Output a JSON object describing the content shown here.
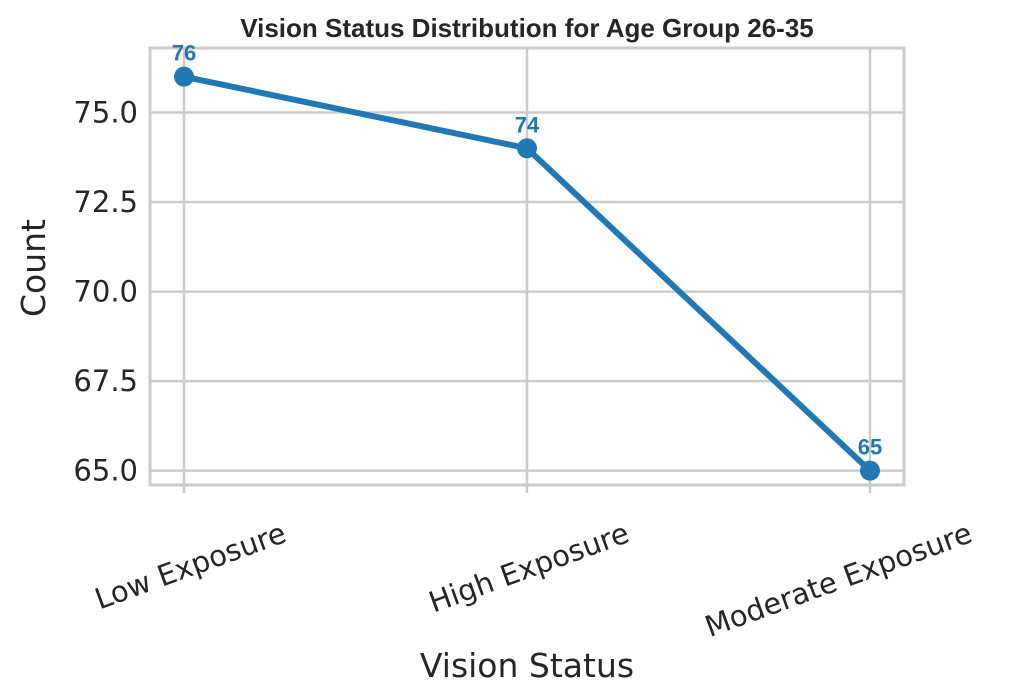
{
  "chart_data": {
    "type": "line",
    "title": "Vision Status Distribution for Age Group 26-35",
    "xlabel": "Vision Status",
    "ylabel": "Count",
    "categories": [
      "Low Exposure",
      "High Exposure",
      "Moderate Exposure"
    ],
    "series": [
      {
        "values": [
          76,
          74,
          65
        ],
        "data_labels": [
          "76",
          "74",
          "65"
        ]
      }
    ],
    "ylim": [
      64.6,
      76.8
    ],
    "yticks": [
      65.0,
      67.5,
      70.0,
      72.5,
      75.0
    ],
    "ytick_labels": [
      "65.0",
      "67.5",
      "70.0",
      "72.5",
      "75.0"
    ],
    "grid": true,
    "line_color": "#2178b4",
    "grid_color": "#cccccc",
    "x_tick_rotation_deg": 20
  }
}
